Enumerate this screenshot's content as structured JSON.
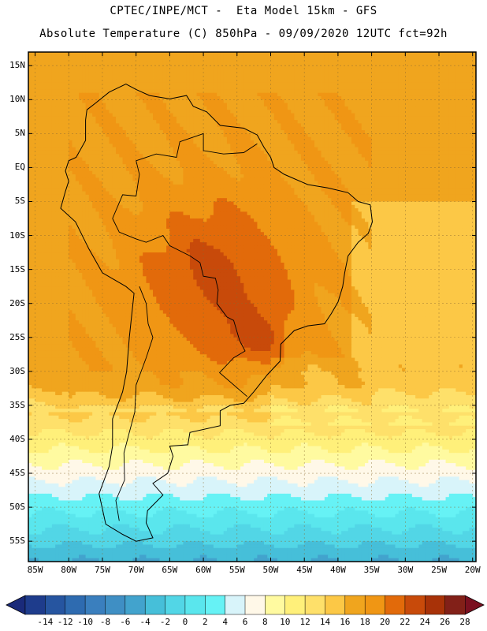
{
  "header": {
    "line1": "CPTEC/INPE/MCT -  Eta Model 15km - GFS",
    "line2": "Absolute Temperature (C) 850hPa - 09/09/2020 12UTC fct=92h"
  },
  "map": {
    "lat_labels": [
      "15N",
      "10N",
      "5N",
      "EQ",
      "5S",
      "10S",
      "15S",
      "20S",
      "25S",
      "30S",
      "35S",
      "40S",
      "45S",
      "50S",
      "55S"
    ],
    "lat_values": [
      15,
      10,
      5,
      0,
      -5,
      -10,
      -15,
      -20,
      -25,
      -30,
      -35,
      -40,
      -45,
      -50,
      -55
    ],
    "lon_labels": [
      "85W",
      "80W",
      "75W",
      "70W",
      "65W",
      "60W",
      "55W",
      "50W",
      "45W",
      "40W",
      "35W",
      "30W",
      "25W",
      "20W"
    ],
    "lon_values": [
      -85,
      -80,
      -75,
      -70,
      -65,
      -60,
      -55,
      -50,
      -45,
      -40,
      -35,
      -30,
      -25,
      -20
    ],
    "lat_range": [
      -58,
      17
    ],
    "lon_range": [
      -86,
      -19.5
    ],
    "coastline": [
      [
        -77.3,
        8.5
      ],
      [
        -76,
        9.5
      ],
      [
        -74,
        11.1
      ],
      [
        -71.5,
        12.3
      ],
      [
        -70,
        11.5
      ],
      [
        -68,
        10.6
      ],
      [
        -65,
        10.1
      ],
      [
        -62.5,
        10.6
      ],
      [
        -61.5,
        9
      ],
      [
        -59.5,
        8.2
      ],
      [
        -57.5,
        6.2
      ],
      [
        -54,
        5.8
      ],
      [
        -52,
        4.8
      ],
      [
        -51,
        3
      ],
      [
        -50,
        1.5
      ],
      [
        -49.5,
        0
      ],
      [
        -48,
        -1
      ],
      [
        -44.5,
        -2.5
      ],
      [
        -41.5,
        -3
      ],
      [
        -38.5,
        -3.7
      ],
      [
        -37,
        -5
      ],
      [
        -35.2,
        -5.5
      ],
      [
        -34.9,
        -8
      ],
      [
        -35.5,
        -9.7
      ],
      [
        -37,
        -11
      ],
      [
        -38.5,
        -13
      ],
      [
        -39,
        -15.5
      ],
      [
        -39.3,
        -17.5
      ],
      [
        -40,
        -19.8
      ],
      [
        -41,
        -21.5
      ],
      [
        -42,
        -23
      ],
      [
        -44.5,
        -23.3
      ],
      [
        -46.5,
        -24
      ],
      [
        -48.5,
        -26
      ],
      [
        -48.6,
        -28.5
      ],
      [
        -50.5,
        -30.5
      ],
      [
        -52.5,
        -33
      ],
      [
        -54,
        -34.7
      ],
      [
        -56,
        -35
      ],
      [
        -57.5,
        -35.8
      ],
      [
        -57.5,
        -38
      ],
      [
        -62,
        -39
      ],
      [
        -62.3,
        -40.8
      ],
      [
        -65,
        -41
      ],
      [
        -64.5,
        -42.5
      ],
      [
        -65.3,
        -45
      ],
      [
        -67.5,
        -46.5
      ],
      [
        -66,
        -48.2
      ],
      [
        -68.3,
        -50.5
      ],
      [
        -68.5,
        -52.3
      ],
      [
        -67.5,
        -54.5
      ],
      [
        -70,
        -55
      ],
      [
        -72,
        -54
      ],
      [
        -74.5,
        -52.5
      ],
      [
        -75.5,
        -48
      ],
      [
        -74,
        -44
      ],
      [
        -73.5,
        -41
      ],
      [
        -73.5,
        -37
      ],
      [
        -72,
        -33
      ],
      [
        -71.4,
        -30
      ],
      [
        -71,
        -25
      ],
      [
        -70.3,
        -18.5
      ],
      [
        -71.5,
        -17.5
      ],
      [
        -75,
        -15.5
      ],
      [
        -77,
        -12
      ],
      [
        -79,
        -8
      ],
      [
        -81.2,
        -6
      ],
      [
        -80.5,
        -3.5
      ],
      [
        -80,
        -2
      ],
      [
        -80.5,
        -0.5
      ],
      [
        -80,
        1
      ],
      [
        -78.9,
        1.5
      ],
      [
        -77.5,
        4
      ],
      [
        -77.5,
        7
      ],
      [
        -77.3,
        8.5
      ]
    ],
    "border_ar_cl": [
      [
        -69.5,
        -17.5
      ],
      [
        -68.5,
        -20
      ],
      [
        -68.2,
        -23
      ],
      [
        -67.5,
        -25
      ],
      [
        -68.5,
        -28
      ],
      [
        -70,
        -32
      ],
      [
        -70.2,
        -36
      ],
      [
        -71,
        -39
      ],
      [
        -71.8,
        -42
      ],
      [
        -71.7,
        -46
      ],
      [
        -73,
        -49
      ],
      [
        -72.5,
        -52
      ]
    ],
    "border_br": [
      [
        -73.5,
        -7.5
      ],
      [
        -72.5,
        -9.5
      ],
      [
        -70,
        -10.5
      ],
      [
        -68.5,
        -11
      ],
      [
        -66,
        -10
      ],
      [
        -65,
        -11.5
      ],
      [
        -62,
        -13
      ],
      [
        -60.5,
        -14
      ],
      [
        -60,
        -16
      ],
      [
        -58.2,
        -16.3
      ],
      [
        -57.8,
        -18
      ],
      [
        -58,
        -20
      ],
      [
        -56.5,
        -22
      ],
      [
        -55.5,
        -22.5
      ],
      [
        -54.6,
        -25.5
      ],
      [
        -53.8,
        -27
      ],
      [
        -55.5,
        -28
      ],
      [
        -57.6,
        -30.2
      ],
      [
        -53.5,
        -33.7
      ]
    ],
    "border_ne": [
      [
        -73.5,
        -7.5
      ],
      [
        -72,
        -4
      ],
      [
        -70,
        -4.2
      ],
      [
        -69.5,
        -1
      ],
      [
        -70,
        1
      ],
      [
        -67,
        2
      ],
      [
        -64,
        1.5
      ],
      [
        -63.5,
        3.8
      ],
      [
        -60,
        5
      ],
      [
        -60,
        2.5
      ],
      [
        -57,
        2
      ],
      [
        -54,
        2.2
      ],
      [
        -52,
        3.5
      ]
    ]
  },
  "colorbar": {
    "labels": [
      "-14",
      "-12",
      "-10",
      "-8",
      "-6",
      "-4",
      "-2",
      "0",
      "2",
      "4",
      "6",
      "8",
      "10",
      "12",
      "14",
      "16",
      "18",
      "20",
      "22",
      "24",
      "26",
      "28"
    ],
    "colors": [
      "#1e3c8c",
      "#2655a0",
      "#2e6bb0",
      "#3a7fbe",
      "#3f8fc4",
      "#42a3cd",
      "#46bfd9",
      "#52d6e6",
      "#5ae6ed",
      "#66f2f5",
      "#d8f4fa",
      "#fff8e8",
      "#fffaa0",
      "#fff07a",
      "#fee06a",
      "#fcc846",
      "#f0a51e",
      "#f09614",
      "#e26a0a",
      "#c84a0a",
      "#a83208",
      "#822018"
    ],
    "low_color": "#1a2a7a",
    "high_color": "#7a1020"
  }
}
